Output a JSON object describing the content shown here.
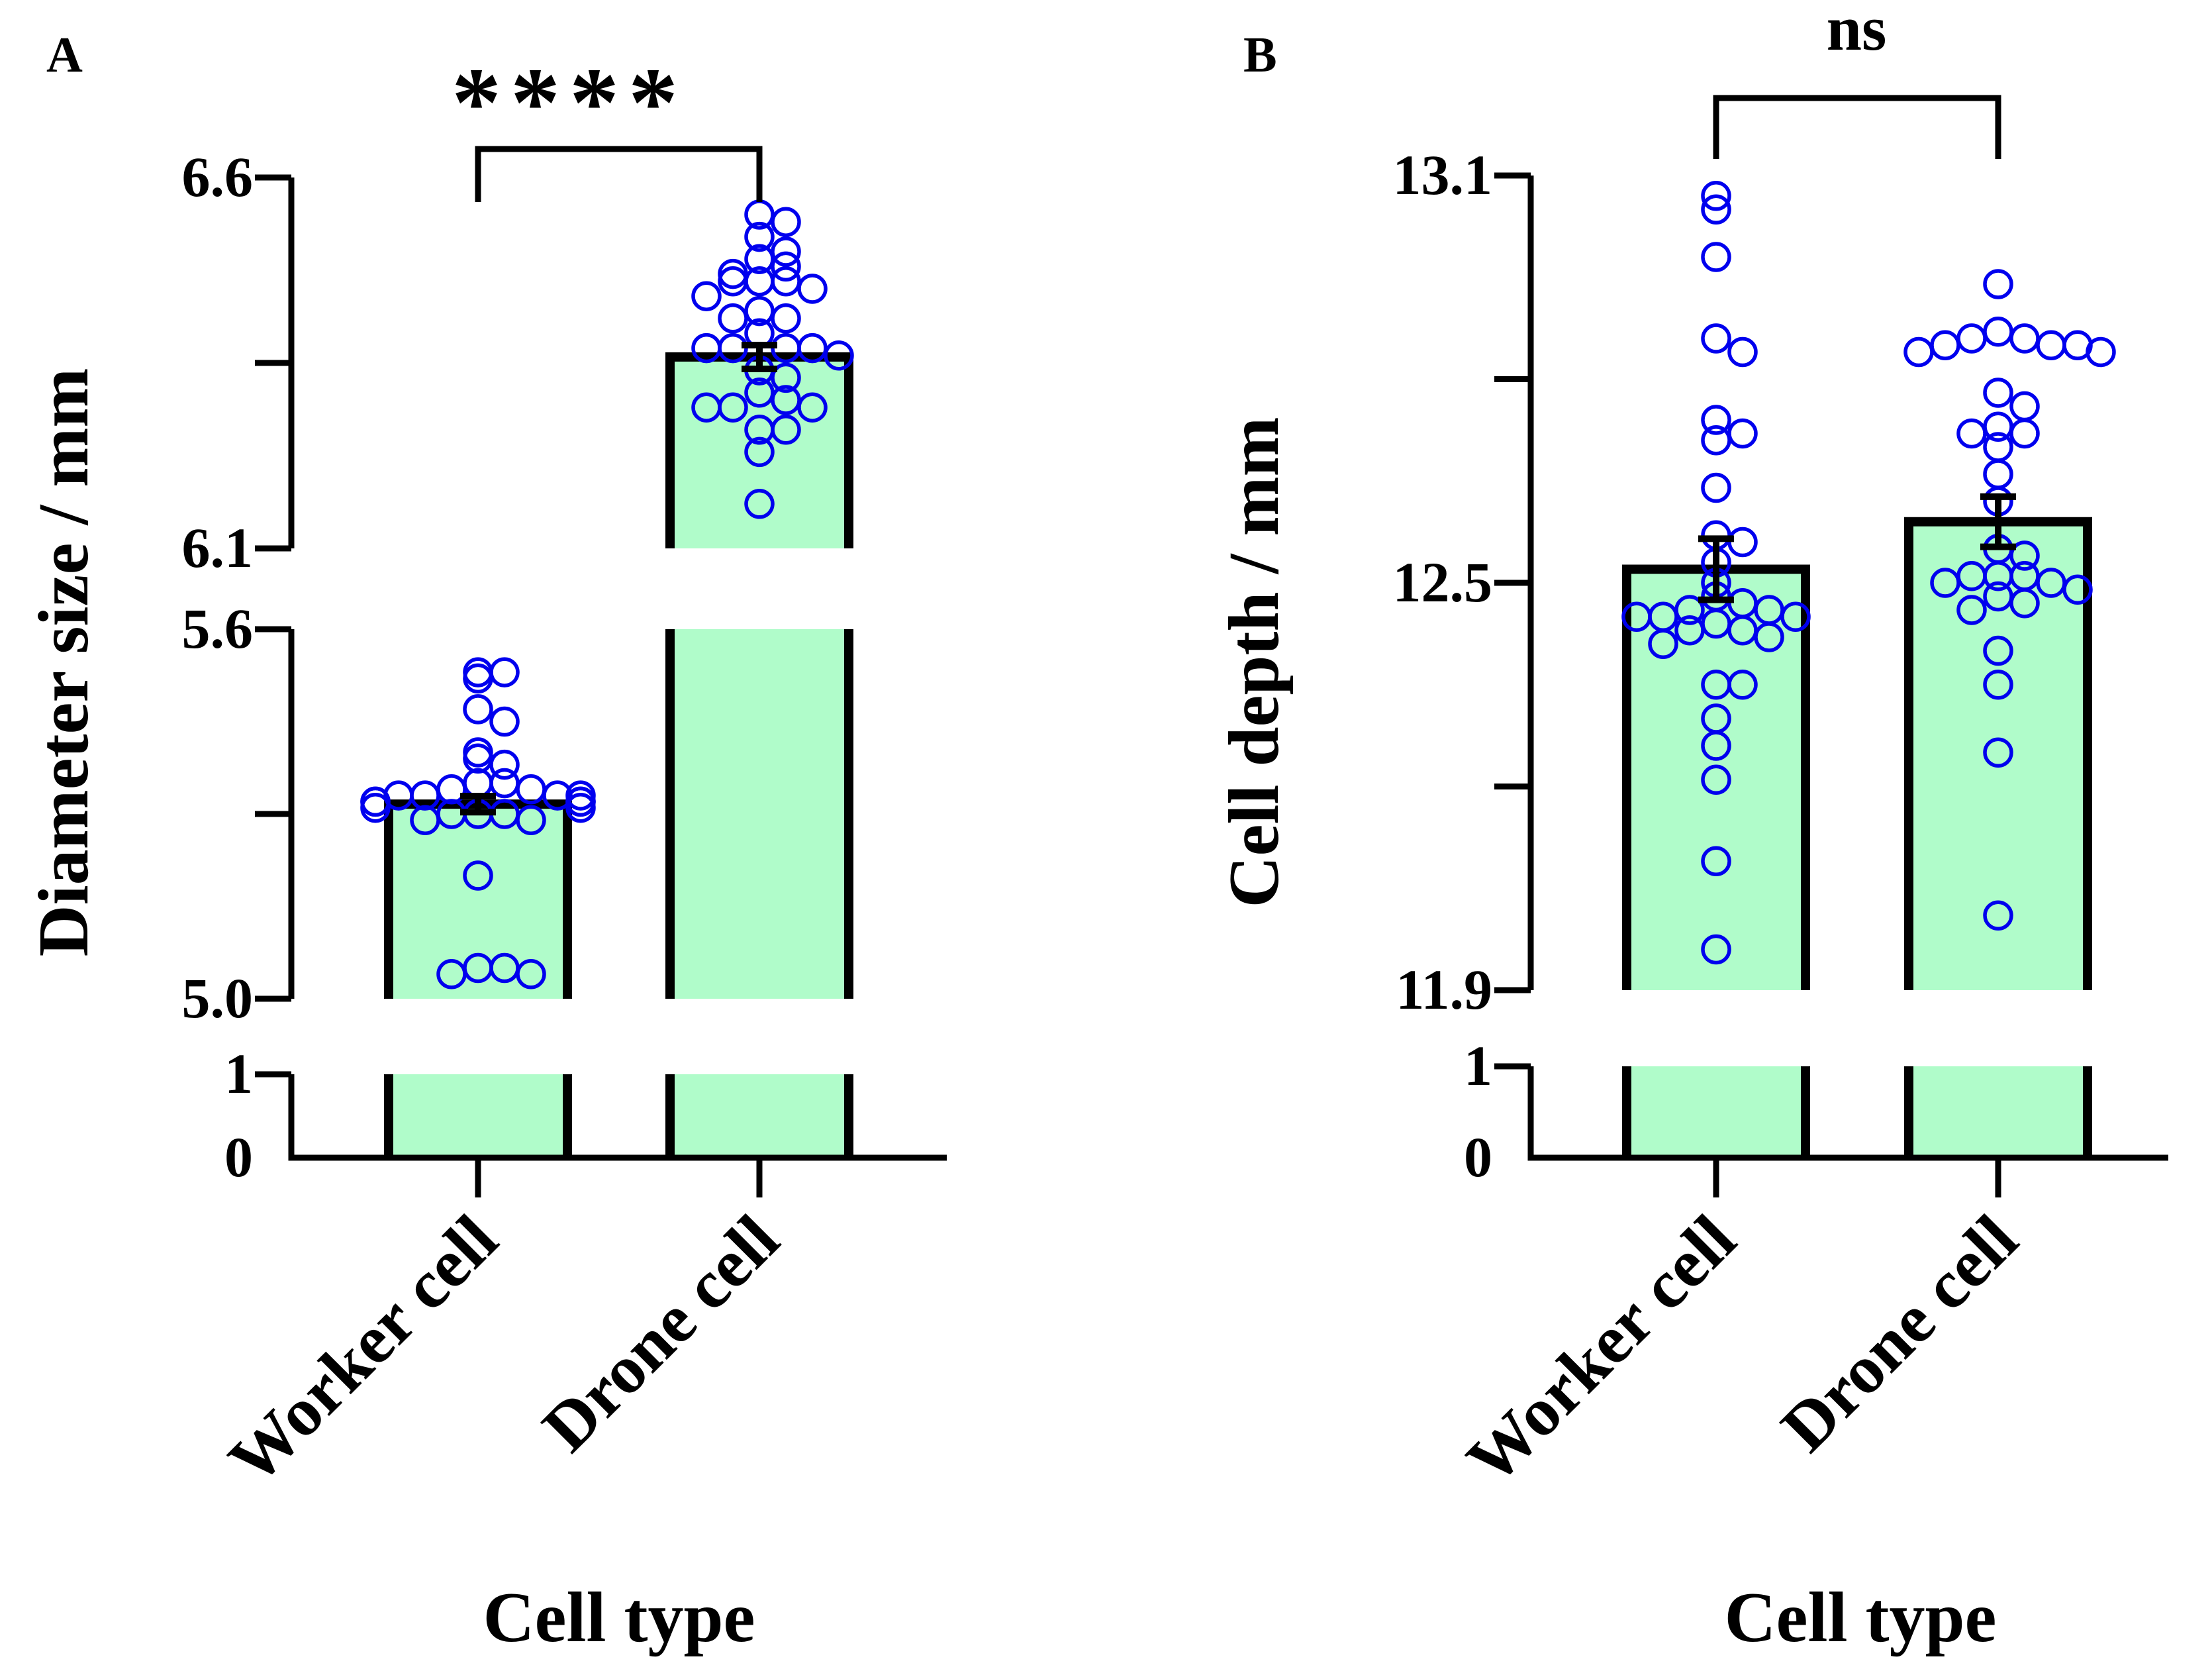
{
  "colors": {
    "bar_fill": "#b0fcca",
    "bar_stroke": "#000000",
    "point_stroke": "#0000ee",
    "axis": "#000000"
  },
  "chart_data": [
    {
      "panel_label": "A",
      "type": "bar",
      "title": "",
      "xlabel": "Cell type",
      "ylabel": "Diameter size / mm",
      "categories": [
        "Worker cell",
        "Drone cell"
      ],
      "values": [
        5.316,
        6.358
      ],
      "sem": [
        0.013,
        0.016
      ],
      "significance": "****",
      "axis_segments": [
        {
          "range": [
            0,
            1
          ],
          "ticks": [
            0,
            1
          ],
          "tick_labels": [
            "0",
            "1"
          ]
        },
        {
          "range": [
            5.0,
            5.6
          ],
          "ticks": [
            5.0,
            5.3,
            5.6
          ],
          "tick_labels": [
            "5.0",
            "",
            "5.6"
          ]
        },
        {
          "range": [
            6.1,
            6.6
          ],
          "ticks": [
            6.1,
            6.35,
            6.6
          ],
          "tick_labels": [
            "6.1",
            "",
            "6.6"
          ]
        }
      ],
      "points": [
        [
          5.53,
          5.53,
          5.52,
          5.47,
          5.45,
          5.4,
          5.39,
          5.38,
          5.35,
          5.35,
          5.34,
          5.34,
          5.33,
          5.33,
          5.33,
          5.33,
          5.32,
          5.32,
          5.32,
          5.32,
          5.31,
          5.31,
          5.3,
          5.3,
          5.3,
          5.29,
          5.29,
          5.2,
          5.05,
          5.05,
          5.04,
          5.04
        ],
        [
          6.55,
          6.54,
          6.52,
          6.5,
          6.49,
          6.48,
          6.47,
          6.46,
          6.46,
          6.46,
          6.45,
          6.44,
          6.42,
          6.41,
          6.41,
          6.39,
          6.37,
          6.37,
          6.37,
          6.37,
          6.36,
          6.34,
          6.33,
          6.31,
          6.3,
          6.29,
          6.29,
          6.29,
          6.26,
          6.26,
          6.23,
          6.16
        ]
      ]
    },
    {
      "panel_label": "B",
      "type": "bar",
      "title": "",
      "xlabel": "Cell type",
      "ylabel": "Cell depth / mm",
      "categories": [
        "Worker cell",
        "Drone cell"
      ],
      "values": [
        12.52,
        12.59
      ],
      "sem": [
        0.045,
        0.037
      ],
      "significance": "ns",
      "axis_segments": [
        {
          "range": [
            0,
            1
          ],
          "ticks": [
            0,
            1
          ],
          "tick_labels": [
            "0",
            "1"
          ]
        },
        {
          "range": [
            11.9,
            13.1
          ],
          "ticks": [
            11.9,
            12.2,
            12.5,
            12.8,
            13.1
          ],
          "tick_labels": [
            "11.9",
            "",
            "12.5",
            "",
            "13.1"
          ]
        }
      ],
      "points": [
        [
          13.07,
          13.05,
          12.98,
          12.86,
          12.84,
          12.74,
          12.72,
          12.71,
          12.64,
          12.57,
          12.56,
          12.53,
          12.5,
          12.48,
          12.47,
          12.46,
          12.46,
          12.45,
          12.45,
          12.45,
          12.44,
          12.43,
          12.43,
          12.42,
          12.41,
          12.35,
          12.35,
          12.3,
          12.26,
          12.21,
          12.09,
          11.96
        ],
        [
          12.94,
          12.87,
          12.86,
          12.86,
          12.85,
          12.85,
          12.85,
          12.84,
          12.84,
          12.78,
          12.76,
          12.73,
          12.72,
          12.72,
          12.7,
          12.66,
          12.62,
          12.55,
          12.54,
          12.51,
          12.51,
          12.51,
          12.5,
          12.5,
          12.49,
          12.48,
          12.47,
          12.46,
          12.4,
          12.35,
          12.25,
          12.01
        ]
      ]
    }
  ]
}
